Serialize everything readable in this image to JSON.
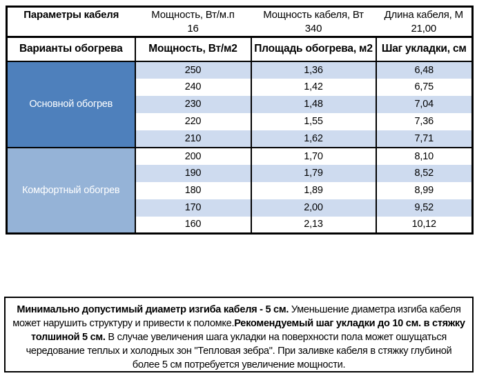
{
  "colors": {
    "section_main_blue": "#4e80bc",
    "section_comfort_blue": "#95b3d7",
    "row_stripe_blue": "#cedbef",
    "grid_border": "#000000"
  },
  "cable_params": {
    "title": "Параметры кабеля",
    "cols": [
      {
        "label": "Мощность, Вт/м.п",
        "value": "16"
      },
      {
        "label": "Мощность кабеля, Вт",
        "value": "340"
      },
      {
        "label": "Длина кабеля, М",
        "value": "21,00"
      }
    ]
  },
  "heating_table": {
    "headers": {
      "variants": "Варианты обогрева",
      "power": "Мощность, Вт/м2",
      "area": "Площадь обогрева, м2",
      "step": "Шаг укладки, см"
    },
    "sections": [
      {
        "label": "Основной обогрев",
        "rows": [
          {
            "power": "250",
            "area": "1,36",
            "step": "6,48"
          },
          {
            "power": "240",
            "area": "1,42",
            "step": "6,75"
          },
          {
            "power": "230",
            "area": "1,48",
            "step": "7,04"
          },
          {
            "power": "220",
            "area": "1,55",
            "step": "7,36"
          },
          {
            "power": "210",
            "area": "1,62",
            "step": "7,71"
          }
        ]
      },
      {
        "label": "Комфортный обогрев",
        "rows": [
          {
            "power": "200",
            "area": "1,70",
            "step": "8,10"
          },
          {
            "power": "190",
            "area": "1,79",
            "step": "8,52"
          },
          {
            "power": "180",
            "area": "1,89",
            "step": "8,99"
          },
          {
            "power": "170",
            "area": "2,00",
            "step": "9,52"
          },
          {
            "power": "160",
            "area": "2,13",
            "step": "10,12"
          }
        ]
      }
    ]
  },
  "note": {
    "bold1": "Минимально допустимый диаметр изгиба кабеля - 5 см.",
    "text1": "  Уменьшение диаметра изгиба кабеля может нарушить структуру и привести к поломке.",
    "bold2": "Рекомендуемый шаг укладки до 10 см. в стяжку толшиной 5 см.",
    "text2": " В  случае увеличения шага укладки на поверхности пола может ошущаться чередование теплых и холодных зон \"Тепловая зебра\". При заливке кабеля в стяжку глубиной более 5 см потребуется увеличение мощности."
  }
}
